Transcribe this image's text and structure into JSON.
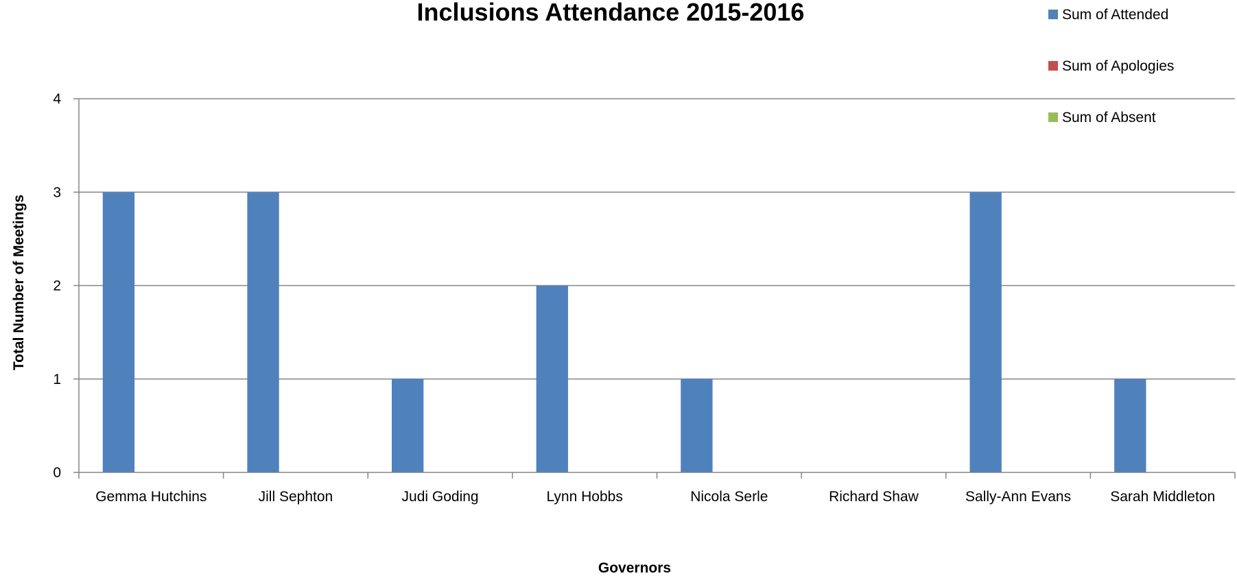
{
  "chart_data": {
    "type": "bar",
    "title": "Inclusions Attendance 2015-2016",
    "xlabel": "Governors",
    "ylabel": "Total Number of Meetings",
    "categories": [
      "Gemma Hutchins",
      "Jill Sephton",
      "Judi Goding",
      "Lynn Hobbs",
      "Nicola Serle",
      "Richard Shaw",
      "Sally-Ann Evans",
      "Sarah Middleton"
    ],
    "series": [
      {
        "name": "Sum of Attended",
        "color": "#4F81BD",
        "values": [
          3,
          3,
          1,
          2,
          1,
          0,
          3,
          1
        ]
      },
      {
        "name": "Sum of Apologies",
        "color": "#C0504D",
        "values": [
          0,
          0,
          0,
          0,
          0,
          0,
          0,
          0
        ]
      },
      {
        "name": "Sum of Absent",
        "color": "#9BBB59",
        "values": [
          0,
          0,
          0,
          0,
          0,
          0,
          0,
          0
        ]
      }
    ],
    "ylim": [
      0,
      4
    ],
    "yticks": [
      0,
      1,
      2,
      3,
      4
    ],
    "grid": true,
    "legend_position": "top-right"
  }
}
